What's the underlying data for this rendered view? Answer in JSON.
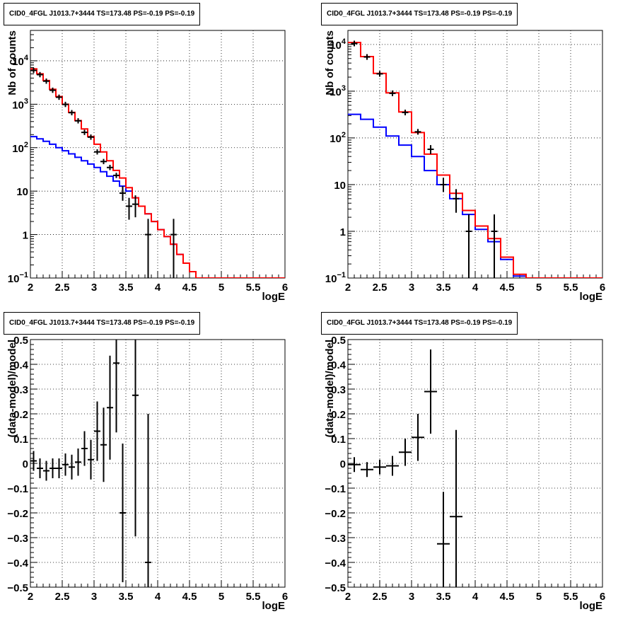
{
  "chart_data": [
    {
      "id": "top-left",
      "type": "histogram",
      "title": "CID0_4FGL J1013.7+3444 TS=173.48 PS=-0.19 PS=-0.19",
      "xlabel": "logE",
      "ylabel": "Nb of counts",
      "xlim": [
        2,
        6
      ],
      "ylim": [
        0.1,
        50000
      ],
      "yscale": "log",
      "grid": true,
      "x_ticks": [
        "2",
        "2.5",
        "3",
        "3.5",
        "4",
        "4.5",
        "5",
        "5.5",
        "6"
      ],
      "y_ticks": [
        {
          "v": 0.1,
          "base": "10",
          "sup": "−1"
        },
        {
          "v": 1,
          "t": "1"
        },
        {
          "v": 10,
          "t": "10"
        },
        {
          "v": 100,
          "base": "10",
          "sup": "2"
        },
        {
          "v": 1000,
          "base": "10",
          "sup": "3"
        },
        {
          "v": 10000,
          "base": "10",
          "sup": "4"
        }
      ],
      "bin_edges": [
        2,
        2.1,
        2.2,
        2.3,
        2.4,
        2.5,
        2.6,
        2.7,
        2.8,
        2.9,
        3.0,
        3.1,
        3.2,
        3.3,
        3.4,
        3.5,
        3.6,
        3.7,
        3.8,
        3.9,
        4.0,
        4.1,
        4.2,
        4.3,
        4.4,
        4.5,
        4.6,
        4.7,
        4.8,
        4.9,
        5.0,
        5.1,
        5.2,
        5.3,
        5.4,
        5.5,
        5.6,
        5.7,
        5.8,
        5.9,
        6.0
      ],
      "series": [
        {
          "color": "#ff0000",
          "values": [
            6500,
            5000,
            3500,
            2200,
            1500,
            1000,
            650,
            420,
            270,
            180,
            120,
            80,
            50,
            30,
            20,
            12,
            7,
            4.5,
            3,
            2,
            1.3,
            0.9,
            0.6,
            0.35,
            0.22,
            0.14,
            0.1,
            0.1,
            0.1,
            0.1,
            0.1,
            0.1,
            0.1,
            0.1,
            0.1,
            0.1,
            0.1,
            0.1,
            0.1,
            0.1
          ]
        },
        {
          "color": "#0000ff",
          "values": [
            180,
            160,
            140,
            120,
            100,
            85,
            72,
            60,
            50,
            42,
            35,
            28,
            22,
            17,
            13,
            10,
            7,
            4.5,
            3,
            2,
            1.3,
            0.9,
            0.6,
            0.35,
            0.22,
            0.14,
            0.1,
            0.1,
            0.1,
            0.1,
            0.1,
            0.1,
            0.1,
            0.1,
            0.1,
            0.1,
            0.1,
            0.1,
            0.1,
            0.1
          ]
        }
      ],
      "points": [
        {
          "x": 2.05,
          "y": 6000
        },
        {
          "x": 2.15,
          "y": 4800
        },
        {
          "x": 2.25,
          "y": 3400
        },
        {
          "x": 2.35,
          "y": 2100
        },
        {
          "x": 2.45,
          "y": 1450
        },
        {
          "x": 2.55,
          "y": 990
        },
        {
          "x": 2.65,
          "y": 640
        },
        {
          "x": 2.75,
          "y": 415
        },
        {
          "x": 2.85,
          "y": 225
        },
        {
          "x": 2.95,
          "y": 175
        },
        {
          "x": 3.05,
          "y": 80
        },
        {
          "x": 3.15,
          "y": 48
        },
        {
          "x": 3.25,
          "y": 35
        },
        {
          "x": 3.35,
          "y": 23
        },
        {
          "x": 3.45,
          "y": 9,
          "lo": 6,
          "hi": 13
        },
        {
          "x": 3.55,
          "y": 4.5,
          "lo": 2.2,
          "hi": 7
        },
        {
          "x": 3.65,
          "y": 5,
          "lo": 2.5,
          "hi": 8
        },
        {
          "x": 3.85,
          "y": 1,
          "lo": 0.1,
          "hi": 2.3
        },
        {
          "x": 4.25,
          "y": 1,
          "lo": 0.1,
          "hi": 2.3
        }
      ]
    },
    {
      "id": "top-right",
      "type": "histogram",
      "title": "CID0_4FGL J1013.7+3444 TS=173.48 PS=-0.19 PS=-0.19",
      "xlabel": "logE",
      "ylabel": "Nb of counts",
      "xlim": [
        2,
        6
      ],
      "ylim": [
        0.1,
        20000
      ],
      "yscale": "log",
      "grid": true,
      "x_ticks": [
        "2",
        "2.5",
        "3",
        "3.5",
        "4",
        "4.5",
        "5",
        "5.5",
        "6"
      ],
      "y_ticks": [
        {
          "v": 0.1,
          "base": "10",
          "sup": "−1"
        },
        {
          "v": 1,
          "t": "1"
        },
        {
          "v": 10,
          "t": "10"
        },
        {
          "v": 100,
          "base": "10",
          "sup": "2"
        },
        {
          "v": 1000,
          "base": "10",
          "sup": "3"
        },
        {
          "v": 10000,
          "base": "10",
          "sup": "4"
        }
      ],
      "bin_edges": [
        2,
        2.2,
        2.4,
        2.6,
        2.8,
        3.0,
        3.2,
        3.4,
        3.6,
        3.8,
        4.0,
        4.2,
        4.4,
        4.6,
        4.8,
        5.0,
        5.2,
        5.4,
        5.6,
        5.8,
        6.0
      ],
      "series": [
        {
          "color": "#ff0000",
          "values": [
            11000,
            5500,
            2400,
            920,
            360,
            130,
            45,
            16,
            6.5,
            2.8,
            1.3,
            0.7,
            0.28,
            0.12,
            0.1,
            0.1,
            0.1,
            0.1,
            0.1,
            0.1
          ]
        },
        {
          "color": "#0000ff",
          "values": [
            320,
            250,
            170,
            110,
            70,
            40,
            20,
            10,
            5,
            2.3,
            1.1,
            0.6,
            0.25,
            0.11,
            0.1,
            0.1,
            0.1,
            0.1,
            0.1,
            0.1
          ]
        }
      ],
      "points": [
        {
          "x": 2.1,
          "y": 10500
        },
        {
          "x": 2.3,
          "y": 5400
        },
        {
          "x": 2.5,
          "y": 2350
        },
        {
          "x": 2.7,
          "y": 900
        },
        {
          "x": 2.9,
          "y": 350
        },
        {
          "x": 3.1,
          "y": 135
        },
        {
          "x": 3.3,
          "y": 57,
          "lo": 45,
          "hi": 70
        },
        {
          "x": 3.5,
          "y": 10,
          "lo": 7,
          "hi": 14
        },
        {
          "x": 3.7,
          "y": 5,
          "lo": 2.5,
          "hi": 8
        },
        {
          "x": 3.9,
          "y": 1,
          "lo": 0.1,
          "hi": 2.3
        },
        {
          "x": 4.3,
          "y": 1,
          "lo": 0.1,
          "hi": 2.3
        }
      ]
    },
    {
      "id": "bottom-left",
      "type": "scatter",
      "title": "CID0_4FGL J1013.7+3444 TS=173.48 PS=-0.19 PS=-0.19",
      "xlabel": "logE",
      "ylabel": "(data-model)/model",
      "xlim": [
        2,
        6
      ],
      "ylim": [
        -0.5,
        0.5
      ],
      "yscale": "linear",
      "grid": true,
      "x_ticks": [
        "2",
        "2.5",
        "3",
        "3.5",
        "4",
        "4.5",
        "5",
        "5.5",
        "6"
      ],
      "y_ticks": [
        {
          "v": -0.5,
          "t": "−0.5"
        },
        {
          "v": -0.4,
          "t": "−0.4"
        },
        {
          "v": -0.3,
          "t": "−0.3"
        },
        {
          "v": -0.2,
          "t": "−0.2"
        },
        {
          "v": -0.1,
          "t": "−0.1"
        },
        {
          "v": 0,
          "t": "0"
        },
        {
          "v": 0.1,
          "t": "0.1"
        },
        {
          "v": 0.2,
          "t": "0.2"
        },
        {
          "v": 0.3,
          "t": "0.3"
        },
        {
          "v": 0.4,
          "t": "0.4"
        },
        {
          "v": 0.5,
          "t": "0.5"
        }
      ],
      "xerr": 0.05,
      "points": [
        {
          "x": 2.05,
          "y": 0.01,
          "e": 0.04
        },
        {
          "x": 2.15,
          "y": -0.02,
          "e": 0.04
        },
        {
          "x": 2.25,
          "y": -0.03,
          "e": 0.04
        },
        {
          "x": 2.35,
          "y": -0.02,
          "e": 0.04
        },
        {
          "x": 2.45,
          "y": -0.02,
          "e": 0.04
        },
        {
          "x": 2.55,
          "y": -0.005,
          "e": 0.045
        },
        {
          "x": 2.65,
          "y": -0.015,
          "e": 0.05
        },
        {
          "x": 2.75,
          "y": 0.005,
          "e": 0.055
        },
        {
          "x": 2.85,
          "y": 0.06,
          "e": 0.07
        },
        {
          "x": 2.95,
          "y": 0.015,
          "e": 0.08
        },
        {
          "x": 3.05,
          "y": 0.13,
          "e": 0.12
        },
        {
          "x": 3.15,
          "y": 0.075,
          "e": 0.15
        },
        {
          "x": 3.25,
          "y": 0.225,
          "e": 0.21
        },
        {
          "x": 3.35,
          "y": 0.405,
          "e": 0.28
        },
        {
          "x": 3.45,
          "y": -0.2,
          "e": 0.28
        },
        {
          "x": 3.65,
          "y": 0.275,
          "e": 0.57
        },
        {
          "x": 3.85,
          "y": -0.4,
          "e": 0.6
        }
      ]
    },
    {
      "id": "bottom-right",
      "type": "scatter",
      "title": "CID0_4FGL J1013.7+3444 TS=173.48 PS=-0.19 PS=-0.19",
      "xlabel": "logE",
      "ylabel": "(data-model)/model",
      "xlim": [
        2,
        6
      ],
      "ylim": [
        -0.5,
        0.5
      ],
      "yscale": "linear",
      "grid": true,
      "x_ticks": [
        "2",
        "2.5",
        "3",
        "3.5",
        "4",
        "4.5",
        "5",
        "5.5",
        "6"
      ],
      "y_ticks": [
        {
          "v": -0.5,
          "t": "−0.5"
        },
        {
          "v": -0.4,
          "t": "−0.4"
        },
        {
          "v": -0.3,
          "t": "−0.3"
        },
        {
          "v": -0.2,
          "t": "−0.2"
        },
        {
          "v": -0.1,
          "t": "−0.1"
        },
        {
          "v": 0,
          "t": "0"
        },
        {
          "v": 0.1,
          "t": "0.1"
        },
        {
          "v": 0.2,
          "t": "0.2"
        },
        {
          "v": 0.3,
          "t": "0.3"
        },
        {
          "v": 0.4,
          "t": "0.4"
        },
        {
          "v": 0.5,
          "t": "0.5"
        }
      ],
      "xerr": 0.1,
      "points": [
        {
          "x": 2.1,
          "y": -0.005,
          "e": 0.03
        },
        {
          "x": 2.3,
          "y": -0.025,
          "e": 0.03
        },
        {
          "x": 2.5,
          "y": -0.015,
          "e": 0.03
        },
        {
          "x": 2.7,
          "y": -0.01,
          "e": 0.04
        },
        {
          "x": 2.9,
          "y": 0.045,
          "e": 0.055
        },
        {
          "x": 3.1,
          "y": 0.105,
          "e": 0.095
        },
        {
          "x": 3.3,
          "y": 0.29,
          "e": 0.17
        },
        {
          "x": 3.5,
          "y": -0.325,
          "e": 0.21
        },
        {
          "x": 3.7,
          "y": -0.215,
          "e": 0.35
        }
      ]
    }
  ]
}
